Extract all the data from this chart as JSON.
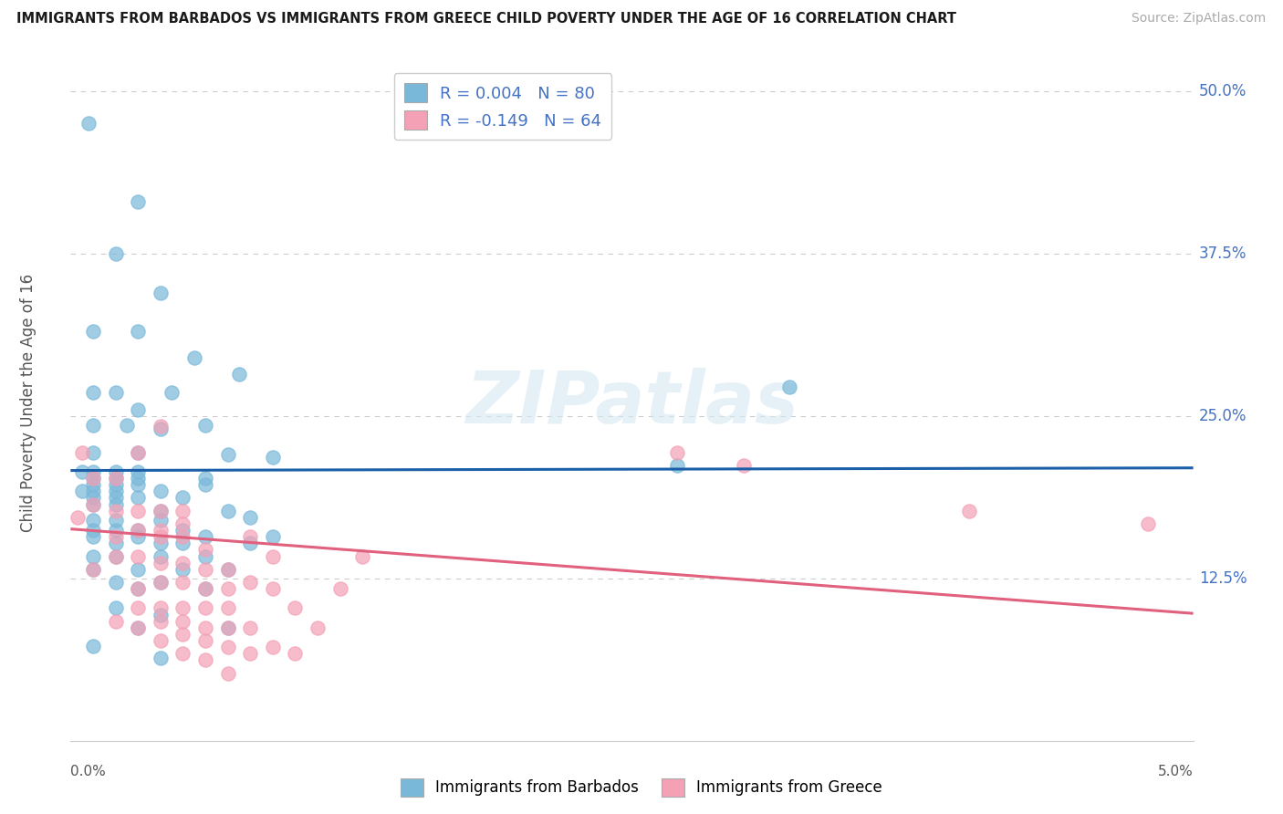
{
  "title": "IMMIGRANTS FROM BARBADOS VS IMMIGRANTS FROM GREECE CHILD POVERTY UNDER THE AGE OF 16 CORRELATION CHART",
  "source": "Source: ZipAtlas.com",
  "ylabel_label": "Child Poverty Under the Age of 16",
  "y_ticks": [
    0.0,
    0.125,
    0.25,
    0.375,
    0.5
  ],
  "y_tick_labels": [
    "",
    "12.5%",
    "25.0%",
    "37.5%",
    "50.0%"
  ],
  "x_range": [
    0.0,
    0.05
  ],
  "y_range": [
    0.0,
    0.52
  ],
  "barbados_color": "#7ab8d9",
  "greece_color": "#f4a0b5",
  "barbados_line_color": "#1a5fa8",
  "greece_line_color": "#e0607e",
  "barbados_R": 0.004,
  "barbados_N": 80,
  "greece_R": -0.149,
  "greece_N": 64,
  "watermark": "ZIPatlas",
  "legend_label_barbados": "Immigrants from Barbados",
  "legend_label_greece": "Immigrants from Greece",
  "barbados_line_y": [
    0.208,
    0.21
  ],
  "greece_line_y": [
    0.163,
    0.098
  ],
  "barbados_scatter": [
    [
      0.0008,
      0.475
    ],
    [
      0.003,
      0.415
    ],
    [
      0.002,
      0.375
    ],
    [
      0.004,
      0.345
    ],
    [
      0.001,
      0.315
    ],
    [
      0.003,
      0.315
    ],
    [
      0.0055,
      0.295
    ],
    [
      0.0075,
      0.282
    ],
    [
      0.001,
      0.268
    ],
    [
      0.002,
      0.268
    ],
    [
      0.0045,
      0.268
    ],
    [
      0.003,
      0.255
    ],
    [
      0.001,
      0.243
    ],
    [
      0.0025,
      0.243
    ],
    [
      0.004,
      0.24
    ],
    [
      0.006,
      0.243
    ],
    [
      0.001,
      0.222
    ],
    [
      0.003,
      0.222
    ],
    [
      0.007,
      0.22
    ],
    [
      0.009,
      0.218
    ],
    [
      0.0005,
      0.207
    ],
    [
      0.001,
      0.207
    ],
    [
      0.002,
      0.207
    ],
    [
      0.003,
      0.207
    ],
    [
      0.001,
      0.202
    ],
    [
      0.002,
      0.202
    ],
    [
      0.003,
      0.202
    ],
    [
      0.006,
      0.202
    ],
    [
      0.001,
      0.197
    ],
    [
      0.002,
      0.197
    ],
    [
      0.003,
      0.197
    ],
    [
      0.006,
      0.197
    ],
    [
      0.0005,
      0.192
    ],
    [
      0.001,
      0.192
    ],
    [
      0.002,
      0.192
    ],
    [
      0.004,
      0.192
    ],
    [
      0.001,
      0.187
    ],
    [
      0.002,
      0.187
    ],
    [
      0.003,
      0.187
    ],
    [
      0.005,
      0.187
    ],
    [
      0.001,
      0.182
    ],
    [
      0.002,
      0.182
    ],
    [
      0.004,
      0.177
    ],
    [
      0.007,
      0.177
    ],
    [
      0.001,
      0.17
    ],
    [
      0.002,
      0.17
    ],
    [
      0.004,
      0.17
    ],
    [
      0.008,
      0.172
    ],
    [
      0.001,
      0.162
    ],
    [
      0.002,
      0.162
    ],
    [
      0.003,
      0.162
    ],
    [
      0.005,
      0.162
    ],
    [
      0.001,
      0.157
    ],
    [
      0.003,
      0.157
    ],
    [
      0.006,
      0.157
    ],
    [
      0.009,
      0.157
    ],
    [
      0.002,
      0.152
    ],
    [
      0.004,
      0.152
    ],
    [
      0.005,
      0.152
    ],
    [
      0.008,
      0.152
    ],
    [
      0.001,
      0.142
    ],
    [
      0.002,
      0.142
    ],
    [
      0.004,
      0.142
    ],
    [
      0.006,
      0.142
    ],
    [
      0.001,
      0.132
    ],
    [
      0.003,
      0.132
    ],
    [
      0.005,
      0.132
    ],
    [
      0.007,
      0.132
    ],
    [
      0.002,
      0.122
    ],
    [
      0.004,
      0.122
    ],
    [
      0.003,
      0.117
    ],
    [
      0.006,
      0.117
    ],
    [
      0.002,
      0.102
    ],
    [
      0.004,
      0.097
    ],
    [
      0.003,
      0.087
    ],
    [
      0.007,
      0.087
    ],
    [
      0.001,
      0.073
    ],
    [
      0.004,
      0.064
    ],
    [
      0.027,
      0.212
    ],
    [
      0.032,
      0.272
    ]
  ],
  "greece_scatter": [
    [
      0.0003,
      0.172
    ],
    [
      0.0005,
      0.222
    ],
    [
      0.001,
      0.132
    ],
    [
      0.001,
      0.182
    ],
    [
      0.001,
      0.202
    ],
    [
      0.002,
      0.092
    ],
    [
      0.002,
      0.142
    ],
    [
      0.002,
      0.157
    ],
    [
      0.002,
      0.177
    ],
    [
      0.002,
      0.202
    ],
    [
      0.003,
      0.087
    ],
    [
      0.003,
      0.102
    ],
    [
      0.003,
      0.117
    ],
    [
      0.003,
      0.142
    ],
    [
      0.003,
      0.162
    ],
    [
      0.003,
      0.177
    ],
    [
      0.003,
      0.222
    ],
    [
      0.004,
      0.077
    ],
    [
      0.004,
      0.092
    ],
    [
      0.004,
      0.102
    ],
    [
      0.004,
      0.122
    ],
    [
      0.004,
      0.137
    ],
    [
      0.004,
      0.157
    ],
    [
      0.004,
      0.162
    ],
    [
      0.004,
      0.177
    ],
    [
      0.004,
      0.242
    ],
    [
      0.005,
      0.067
    ],
    [
      0.005,
      0.082
    ],
    [
      0.005,
      0.092
    ],
    [
      0.005,
      0.102
    ],
    [
      0.005,
      0.122
    ],
    [
      0.005,
      0.137
    ],
    [
      0.005,
      0.157
    ],
    [
      0.005,
      0.167
    ],
    [
      0.005,
      0.177
    ],
    [
      0.006,
      0.062
    ],
    [
      0.006,
      0.077
    ],
    [
      0.006,
      0.087
    ],
    [
      0.006,
      0.102
    ],
    [
      0.006,
      0.117
    ],
    [
      0.006,
      0.132
    ],
    [
      0.006,
      0.147
    ],
    [
      0.007,
      0.052
    ],
    [
      0.007,
      0.072
    ],
    [
      0.007,
      0.087
    ],
    [
      0.007,
      0.102
    ],
    [
      0.007,
      0.117
    ],
    [
      0.007,
      0.132
    ],
    [
      0.008,
      0.067
    ],
    [
      0.008,
      0.087
    ],
    [
      0.008,
      0.122
    ],
    [
      0.008,
      0.157
    ],
    [
      0.009,
      0.072
    ],
    [
      0.009,
      0.117
    ],
    [
      0.009,
      0.142
    ],
    [
      0.01,
      0.067
    ],
    [
      0.01,
      0.102
    ],
    [
      0.011,
      0.087
    ],
    [
      0.012,
      0.117
    ],
    [
      0.013,
      0.142
    ],
    [
      0.027,
      0.222
    ],
    [
      0.03,
      0.212
    ],
    [
      0.04,
      0.177
    ],
    [
      0.048,
      0.167
    ]
  ]
}
